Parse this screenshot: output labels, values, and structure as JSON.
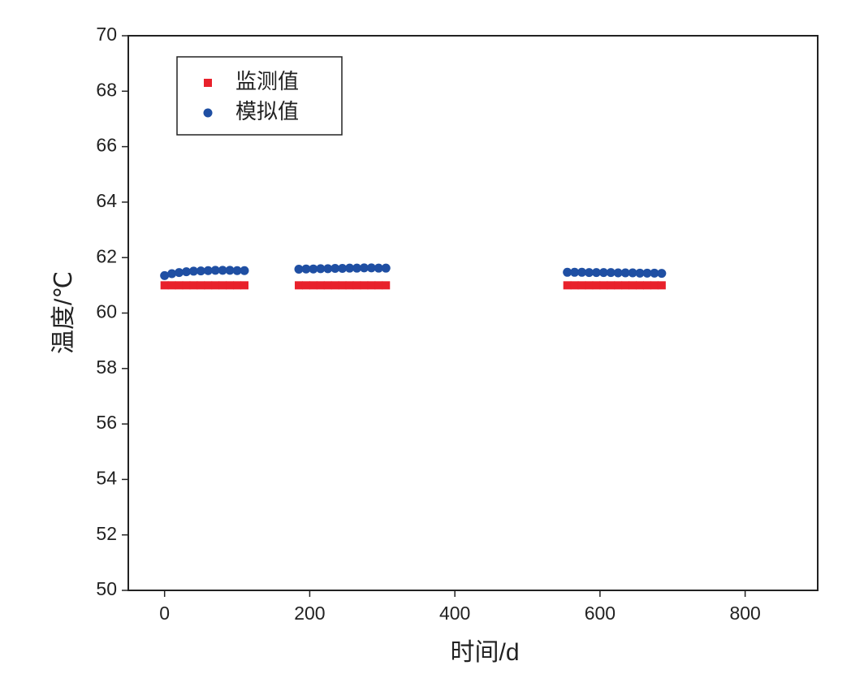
{
  "chart_data": {
    "type": "scatter",
    "xlabel": "时间/d",
    "ylabel": "温度/℃",
    "x": [
      0,
      10,
      20,
      30,
      40,
      50,
      60,
      70,
      80,
      90,
      100,
      110,
      185,
      195,
      205,
      215,
      225,
      235,
      245,
      255,
      265,
      275,
      285,
      295,
      305,
      555,
      565,
      575,
      585,
      595,
      605,
      615,
      625,
      635,
      645,
      655,
      665,
      675,
      685
    ],
    "series": [
      {
        "name": "监测值",
        "color": "#e8212b",
        "marker": "square",
        "values": [
          61.0,
          61.0,
          61.0,
          61.0,
          61.0,
          61.0,
          61.0,
          61.0,
          61.0,
          61.0,
          61.0,
          61.0,
          61.0,
          61.0,
          61.0,
          61.0,
          61.0,
          61.0,
          61.0,
          61.0,
          61.0,
          61.0,
          61.0,
          61.0,
          61.0,
          61.0,
          61.0,
          61.0,
          61.0,
          61.0,
          61.0,
          61.0,
          61.0,
          61.0,
          61.0,
          61.0,
          61.0,
          61.0,
          61.0
        ]
      },
      {
        "name": "模拟值",
        "color": "#1f4fa3",
        "marker": "circle",
        "values": [
          61.35,
          61.42,
          61.46,
          61.49,
          61.51,
          61.52,
          61.53,
          61.54,
          61.54,
          61.54,
          61.53,
          61.53,
          61.58,
          61.59,
          61.59,
          61.6,
          61.6,
          61.61,
          61.61,
          61.62,
          61.62,
          61.63,
          61.63,
          61.62,
          61.62,
          61.47,
          61.47,
          61.47,
          61.46,
          61.46,
          61.46,
          61.46,
          61.45,
          61.45,
          61.45,
          61.44,
          61.44,
          61.44,
          61.43
        ]
      }
    ],
    "xlim": [
      -50,
      900
    ],
    "xticks": [
      0,
      200,
      400,
      600,
      800
    ],
    "ylim": [
      50,
      70
    ],
    "yticks": [
      50,
      52,
      54,
      56,
      58,
      60,
      62,
      64,
      66,
      68,
      70
    ],
    "legend": "upper left"
  }
}
